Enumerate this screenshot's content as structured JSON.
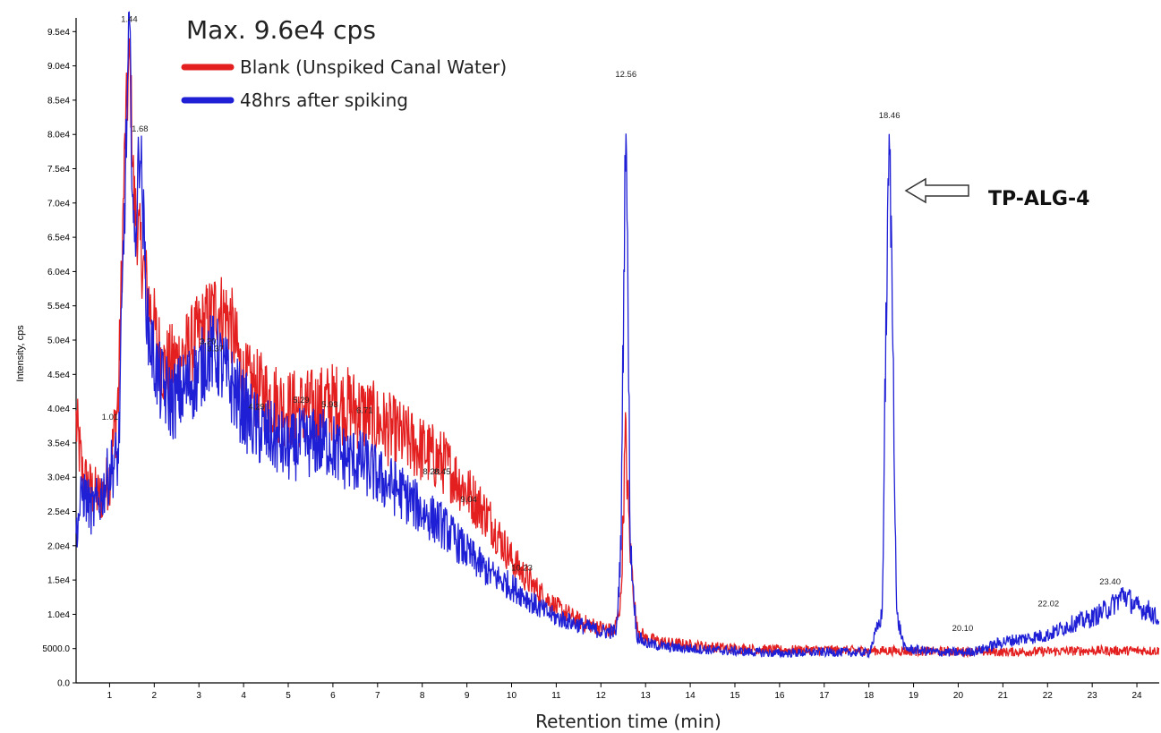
{
  "chart_data": {
    "type": "line",
    "title": "Max. 9.6e4 cps",
    "xlabel": "Retention time (min)",
    "ylabel": "Intensity, cps",
    "xlim": [
      0.25,
      24.5
    ],
    "ylim": [
      0,
      97000
    ],
    "x_ticks": [
      "1",
      "2",
      "3",
      "4",
      "5",
      "6",
      "7",
      "8",
      "9",
      "10",
      "11",
      "12",
      "13",
      "14",
      "15",
      "16",
      "17",
      "18",
      "19",
      "20",
      "21",
      "22",
      "23",
      "24"
    ],
    "y_ticks": [
      {
        "v": 0,
        "label": "0.0"
      },
      {
        "v": 5000,
        "label": "5000.0"
      },
      {
        "v": 10000,
        "label": "1.0e4"
      },
      {
        "v": 15000,
        "label": "1.5e4"
      },
      {
        "v": 20000,
        "label": "2.0e4"
      },
      {
        "v": 25000,
        "label": "2.5e4"
      },
      {
        "v": 30000,
        "label": "3.0e4"
      },
      {
        "v": 35000,
        "label": "3.5e4"
      },
      {
        "v": 40000,
        "label": "4.0e4"
      },
      {
        "v": 45000,
        "label": "4.5e4"
      },
      {
        "v": 50000,
        "label": "5.0e4"
      },
      {
        "v": 55000,
        "label": "5.5e4"
      },
      {
        "v": 60000,
        "label": "6.0e4"
      },
      {
        "v": 65000,
        "label": "6.5e4"
      },
      {
        "v": 70000,
        "label": "7.0e4"
      },
      {
        "v": 75000,
        "label": "7.5e4"
      },
      {
        "v": 80000,
        "label": "8.0e4"
      },
      {
        "v": 85000,
        "label": "8.5e4"
      },
      {
        "v": 90000,
        "label": "9.0e4"
      },
      {
        "v": 95000,
        "label": "9.5e4"
      }
    ],
    "series": [
      {
        "name": "Blank (Unspiked Canal Water)",
        "color": "#e41f1f",
        "x": [
          0.25,
          0.4,
          0.6,
          0.8,
          1.0,
          1.2,
          1.35,
          1.45,
          1.55,
          1.7,
          1.9,
          2.2,
          2.5,
          2.8,
          3.1,
          3.4,
          3.7,
          4.0,
          4.5,
          5.0,
          5.5,
          6.0,
          6.5,
          7.0,
          7.5,
          8.0,
          8.5,
          9.0,
          9.5,
          10.0,
          10.5,
          11.0,
          11.5,
          12.0,
          12.3,
          12.45,
          12.55,
          12.65,
          12.8,
          13.0,
          13.5,
          14.0,
          15.0,
          16.0,
          17.0,
          18.0,
          18.5,
          19.0,
          20.0,
          21.0,
          22.0,
          23.0,
          24.0,
          24.5
        ],
        "y": [
          38000,
          30000,
          28000,
          27000,
          30000,
          42000,
          80000,
          91000,
          70000,
          63000,
          55000,
          46000,
          47000,
          49000,
          52000,
          55000,
          53000,
          44000,
          42000,
          40000,
          40000,
          41000,
          40000,
          38000,
          36000,
          34000,
          32000,
          28000,
          24000,
          18000,
          14000,
          11000,
          9000,
          8000,
          7500,
          12000,
          36000,
          20000,
          8000,
          6500,
          5800,
          5500,
          5000,
          4800,
          4800,
          4700,
          4700,
          4600,
          4600,
          4500,
          4600,
          4700,
          4700,
          4700
        ]
      },
      {
        "name": "48hrs after spiking",
        "color": "#1f1fd6",
        "x": [
          0.25,
          0.4,
          0.6,
          0.8,
          1.01,
          1.2,
          1.3,
          1.44,
          1.55,
          1.68,
          1.85,
          2.1,
          2.4,
          2.7,
          3.0,
          3.2,
          3.37,
          3.6,
          4.0,
          4.29,
          4.6,
          5.0,
          5.29,
          5.6,
          5.93,
          6.2,
          6.71,
          7.0,
          7.5,
          8.0,
          8.45,
          9.0,
          9.5,
          10.0,
          10.23,
          10.6,
          11.0,
          11.5,
          12.0,
          12.35,
          12.45,
          12.56,
          12.66,
          12.8,
          13.0,
          13.5,
          14.0,
          15.0,
          16.0,
          17.0,
          18.0,
          18.3,
          18.38,
          18.46,
          18.54,
          18.62,
          18.8,
          19.5,
          20.1,
          20.5,
          21.0,
          21.5,
          22.02,
          22.5,
          23.0,
          23.4,
          23.7,
          24.0,
          24.3,
          24.5
        ],
        "y": [
          22000,
          28000,
          25000,
          27000,
          31000,
          33000,
          60000,
          96000,
          62000,
          80000,
          52000,
          44000,
          41000,
          43000,
          45000,
          48000,
          48000,
          45000,
          40000,
          37000,
          36000,
          34000,
          35000,
          35000,
          35000,
          33000,
          32000,
          30000,
          28000,
          25000,
          23000,
          19000,
          16000,
          14000,
          13000,
          11000,
          9500,
          8500,
          7500,
          7500,
          20000,
          86000,
          20000,
          7000,
          5800,
          5200,
          5000,
          4600,
          4300,
          4500,
          4400,
          10000,
          50000,
          80000,
          50000,
          10000,
          5000,
          4500,
          4400,
          4800,
          6000,
          6500,
          7000,
          8500,
          9500,
          11000,
          13000,
          11000,
          10500,
          9000
        ]
      }
    ],
    "peak_labels": [
      {
        "x": 1.01,
        "y": 38000,
        "label": "1.01"
      },
      {
        "x": 1.44,
        "y": 96000,
        "label": "1.44"
      },
      {
        "x": 1.68,
        "y": 80000,
        "label": "1.68"
      },
      {
        "x": 3.2,
        "y": 49000,
        "label": "3.20"
      },
      {
        "x": 3.37,
        "y": 48000,
        "label": "3.37"
      },
      {
        "x": 4.29,
        "y": 39500,
        "label": "4.29"
      },
      {
        "x": 5.29,
        "y": 40500,
        "label": "5.29"
      },
      {
        "x": 5.93,
        "y": 39800,
        "label": "5.93"
      },
      {
        "x": 6.71,
        "y": 39000,
        "label": "6.71"
      },
      {
        "x": 8.2,
        "y": 30000,
        "label": "8.20"
      },
      {
        "x": 8.45,
        "y": 30000,
        "label": "8.45"
      },
      {
        "x": 9.04,
        "y": 26000,
        "label": "9.04"
      },
      {
        "x": 10.23,
        "y": 16000,
        "label": "10.23"
      },
      {
        "x": 12.56,
        "y": 88000,
        "label": "12.56"
      },
      {
        "x": 18.46,
        "y": 82000,
        "label": "18.46"
      },
      {
        "x": 20.1,
        "y": 7200,
        "label": "20.10"
      },
      {
        "x": 22.02,
        "y": 10800,
        "label": "22.02"
      },
      {
        "x": 23.4,
        "y": 14000,
        "label": "23.40"
      }
    ],
    "legend": {
      "placement": "top-left"
    },
    "annotation": {
      "text": "TP-ALG-4",
      "x": 18.46,
      "y": 72000
    }
  }
}
